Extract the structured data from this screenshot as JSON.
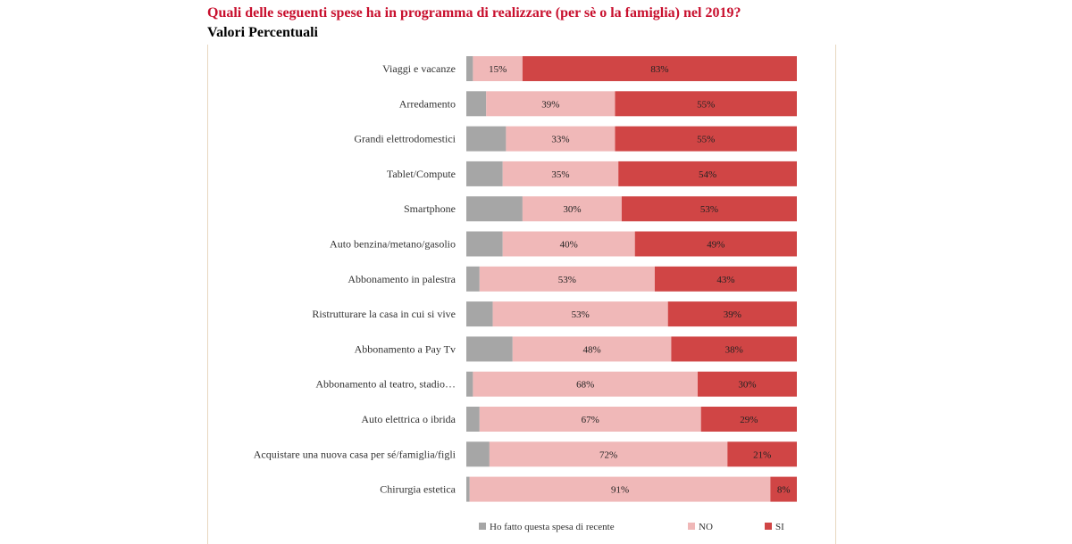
{
  "title": "Quali delle seguenti spese ha in programma di realizzare (per sè o la famiglia) nel 2019?",
  "subtitle": "Valori Percentuali",
  "chart_data": {
    "type": "bar",
    "orientation": "horizontal",
    "stacked": true,
    "percent_stacked": true,
    "categories": [
      "Viaggi e vacanze",
      "Arredamento",
      "Grandi elettrodomestici",
      "Tablet/Compute",
      "Smartphone",
      "Auto benzina/metano/gasolio",
      "Abbonamento in palestra",
      "Ristrutturare la casa in cui si vive",
      "Abbonamento a Pay Tv",
      "Abbonamento al teatro, stadio…",
      "Auto elettrica o ibrida",
      "Acquistare una nuova casa per sé/famiglia/figli",
      "Chirurgia estetica"
    ],
    "series": [
      {
        "name": "Ho fatto questa spesa di recente",
        "color": "#a6a6a6",
        "values": [
          2,
          6,
          12,
          11,
          17,
          11,
          4,
          8,
          14,
          2,
          4,
          7,
          1
        ]
      },
      {
        "name": "NO",
        "color": "#f0b8b8",
        "values": [
          15,
          39,
          33,
          35,
          30,
          40,
          53,
          53,
          48,
          68,
          67,
          72,
          91
        ]
      },
      {
        "name": "SI",
        "color": "#d04545",
        "values": [
          83,
          55,
          55,
          54,
          53,
          49,
          43,
          39,
          38,
          30,
          29,
          21,
          8
        ]
      }
    ],
    "labels": {
      "NO": [
        "15%",
        "39%",
        "33%",
        "35%",
        "30%",
        "40%",
        "53%",
        "53%",
        "48%",
        "68%",
        "67%",
        "72%",
        "91%"
      ],
      "SI": [
        "83%",
        "55%",
        "55%",
        "54%",
        "53%",
        "49%",
        "43%",
        "39%",
        "38%",
        "30%",
        "29%",
        "21%",
        "8%"
      ]
    },
    "xlim": [
      0,
      100
    ],
    "legend_position": "bottom"
  }
}
